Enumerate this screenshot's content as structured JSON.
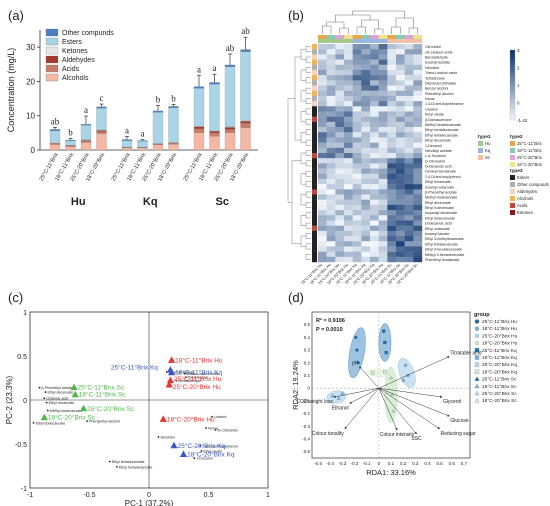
{
  "panel_labels": [
    "(a)",
    "(b)",
    "(c)",
    "(d)"
  ],
  "chart_data": [
    {
      "type": "bar",
      "panel": "(a)",
      "ylabel": "Concentration (mg/L)",
      "ylim": [
        0,
        35
      ],
      "yticks": [
        0,
        10,
        20,
        30
      ],
      "categories": [
        "25°C-11°Brix",
        "18°C-11°Brix",
        "25°C-20°Brix",
        "18°C-20°Brix",
        "25°C-11°Brix",
        "18°C-11°Brix",
        "25°C-20°Brix",
        "18°C-20°Brix",
        "25°C-11°Brix",
        "18°C-11°Brix",
        "25°C-20°Brix",
        "18°C-20°Brix"
      ],
      "groups": [
        {
          "label": "Hu",
          "from": 0,
          "to": 3
        },
        {
          "label": "Kq",
          "from": 4,
          "to": 7
        },
        {
          "label": "Sc",
          "from": 8,
          "to": 11
        }
      ],
      "legend_position": "top-left",
      "series": [
        {
          "name": "Alcohols",
          "color": "#f4b7a1",
          "values": [
            1.6,
            1.0,
            2.2,
            4.8,
            0.6,
            0.6,
            1.5,
            1.7,
            5.0,
            4.0,
            5.0,
            6.5
          ]
        },
        {
          "name": "Acids",
          "color": "#c97b6b",
          "values": [
            0.3,
            0.2,
            0.4,
            0.6,
            0.1,
            0.1,
            0.2,
            0.3,
            1.2,
            1.0,
            1.0,
            1.3
          ]
        },
        {
          "name": "Aldehydes",
          "color": "#9e3a2e",
          "values": [
            0.1,
            0.1,
            0.2,
            0.3,
            0.05,
            0.05,
            0.1,
            0.1,
            0.6,
            0.5,
            0.6,
            0.6
          ]
        },
        {
          "name": "Ketones",
          "color": "#e8e8e8",
          "values": [
            0.2,
            0.1,
            0.2,
            0.2,
            0.1,
            0.1,
            0.2,
            0.2,
            0.2,
            0.2,
            0.2,
            0.2
          ]
        },
        {
          "name": "Esters",
          "color": "#a9d3e6",
          "values": [
            3.4,
            1.3,
            4.2,
            6.3,
            1.9,
            1.7,
            9.0,
            10.0,
            11.0,
            13.5,
            17.5,
            20.1
          ]
        },
        {
          "name": "Other compunds",
          "color": "#4a7fbd",
          "values": [
            0.4,
            0.2,
            0.3,
            0.4,
            0.3,
            0.2,
            0.4,
            0.4,
            0.5,
            0.5,
            0.5,
            0.6
          ]
        }
      ],
      "errors": [
        0.6,
        0.5,
        2.4,
        0.8,
        0.9,
        0.3,
        1.6,
        0.6,
        3.3,
        2.4,
        3.2,
        3.6
      ],
      "letters": [
        "ab",
        "b",
        "a",
        "c",
        "a",
        "a",
        "b",
        "b",
        "a",
        "a",
        "ab",
        "ab"
      ]
    },
    {
      "type": "heatmap",
      "panel": "(b)",
      "rows": [
        "Citronellol",
        "cis-Linalool oxide",
        "Benzaldehyde",
        "Isoamyl acetate",
        "Nerolidol",
        "Trans-Linalool oxide",
        "Tetradecane",
        "Diisobutyl phthalate",
        "Benzyl alcohol",
        "Phenethyl alcohol",
        "Nonal",
        "1,3-Di-tert-butylbenzene",
        "Linalool",
        "Ethyl oleate",
        "β-Damascenone",
        "Methyl hexadecanoate",
        "Ethyl hexadecanoate",
        "Ethyl tetradecanoate",
        "Ethyl decanoate",
        "1-Decanol",
        "Nerolidyl acetate",
        "L-α-Terpineol",
        "D-Citronellol",
        "Dodecanoic acid",
        "Geranyl isovalerate",
        "2,4-Di-tert-butylphenol",
        "Ethyl hexanoate",
        "Isoamyl octanoate",
        "β-Phenethyl acetate",
        "Methyl dodecanoate",
        "Ethyl decenoate",
        "Ethyl 9-decenoate",
        "Isopentyl decanoate",
        "Ethyl dodecanoate",
        "Dodecanoic acid",
        "Ethyl octanoate",
        "Isoamyl laurate",
        "Ethyl 3-methylbutanoate",
        "Ethyl tetradecanoate",
        "Ethyl 9-hexadecenoate",
        "Methyl 9-hexadecenoate",
        "Phenethyl isovalerate"
      ],
      "columns": [
        "25°C-11°Brix Hu",
        "18°C-11°Brix Hu",
        "25°C-20°Brix Hu",
        "18°C-20°Brix Hu",
        "25°C-11°Brix Kq",
        "18°C-11°Brix Kq",
        "25°C-20°Brix Kq",
        "18°C-20°Brix Kq",
        "25°C-11°Brix Sc",
        "18°C-11°Brix Sc",
        "25°C-20°Brix Sc",
        "18°C-20°Brix Sc"
      ],
      "color_scale": {
        "min": -1.42,
        "max": 3,
        "ticks": [
          "3",
          "2",
          "1",
          "0",
          "-1.42"
        ],
        "low_color": "#f2f7fc",
        "high_color": "#08306b"
      },
      "legend_type1": {
        "title": "type1",
        "items": [
          {
            "label": "Hu",
            "color": "#a3c98a"
          },
          {
            "label": "Kq",
            "color": "#9ab6e2"
          },
          {
            "label": "Sc",
            "color": "#f2c0a6"
          }
        ]
      },
      "legend_type2": {
        "title": "type2",
        "items": [
          {
            "label": "25°C-11°Brix",
            "color": "#e8a54a"
          },
          {
            "label": "18°C-11°Brix",
            "color": "#86c9b5"
          },
          {
            "label": "25°C-20°Brix",
            "color": "#d9a4d6"
          },
          {
            "label": "18°C-20°Brix",
            "color": "#ece48a"
          }
        ]
      },
      "legend_type3": {
        "title": "type3",
        "items": [
          {
            "label": "Esters",
            "color": "#222222"
          },
          {
            "label": "Other compunds",
            "color": "#b0b0b0"
          },
          {
            "label": "Aldehydes",
            "color": "#f6d0c0"
          },
          {
            "label": "Alcohols",
            "color": "#f2b35a"
          },
          {
            "label": "Acids",
            "color": "#bb4a3c"
          },
          {
            "label": "Ketones",
            "color": "#8a1c1c"
          }
        ]
      }
    },
    {
      "type": "scatter",
      "panel": "(c)",
      "xlabel": "PC-1 (37.2%)",
      "ylabel": "PC-2 (23.3%)",
      "xlim": [
        -1,
        1
      ],
      "ylim": [
        -1,
        1
      ],
      "xticks": [
        "-1",
        "-0.5",
        "0",
        "0.5",
        "1"
      ],
      "yticks": [
        "1",
        "0.5",
        "0",
        "-0.5",
        "-1"
      ],
      "samples": [
        {
          "label": "25°C-11°Brix Kq",
          "color": "#3a57c9",
          "x": 0.18,
          "y": 0.34,
          "dx": -0.5,
          "dy": 0.03
        },
        {
          "label": "18°C-11°Brix Kq",
          "color": "#3a57c9",
          "x": 0.19,
          "y": 0.31,
          "dx": 0.03,
          "dy": 0.0
        },
        {
          "label": "18°C-11°Brix Hu",
          "color": "#e8332f",
          "x": 0.19,
          "y": 0.45,
          "dx": 0.03,
          "dy": 0.0
        },
        {
          "label": "25°C-11°Brix Hu",
          "color": "#e8332f",
          "x": 0.18,
          "y": 0.22,
          "dx": 0.03,
          "dy": 0.02
        },
        {
          "label": "25°C-20°Brix Hu",
          "color": "#e8332f",
          "x": 0.17,
          "y": 0.17,
          "dx": 0.03,
          "dy": -0.02
        },
        {
          "label": "18°C-20°Brix Hu",
          "color": "#e8332f",
          "x": 0.12,
          "y": -0.22,
          "dx": 0.03,
          "dy": 0.0
        },
        {
          "label": "25°C-20°Brix Kq",
          "color": "#3a57c9",
          "x": 0.21,
          "y": -0.52,
          "dx": 0.03,
          "dy": 0.0
        },
        {
          "label": "18°C-20°Brix Kq",
          "color": "#3a57c9",
          "x": 0.29,
          "y": -0.62,
          "dx": 0.03,
          "dy": 0.0
        },
        {
          "label": "25°C-11°Brix Sc",
          "color": "#4cb848",
          "x": -0.63,
          "y": 0.14,
          "dx": 0.03,
          "dy": 0.0
        },
        {
          "label": "18°C-11°Brix Sc",
          "color": "#4cb848",
          "x": -0.62,
          "y": 0.06,
          "dx": 0.03,
          "dy": 0.0
        },
        {
          "label": "25°C-20°Brix Sc",
          "color": "#4cb848",
          "x": -0.55,
          "y": -0.1,
          "dx": 0.03,
          "dy": 0.0
        },
        {
          "label": "18°C-20°Brix Sc",
          "color": "#4cb848",
          "x": -0.88,
          "y": -0.2,
          "dx": 0.03,
          "dy": 0.0
        }
      ],
      "loadings": [
        {
          "label": "Isoamyl acetate",
          "x": 0.15,
          "y": 0.32
        },
        {
          "label": "Benzaldehyde",
          "x": 0.23,
          "y": 0.22
        },
        {
          "label": "Trans-Linalool oxide",
          "x": 0.3,
          "y": 0.3
        },
        {
          "label": "Tetradecane",
          "x": 0.31,
          "y": 0.26
        },
        {
          "label": "Linalool",
          "x": 0.53,
          "y": -0.19
        },
        {
          "label": "D-Citronellol",
          "x": 0.56,
          "y": -0.34
        },
        {
          "label": "Nonal",
          "x": 0.48,
          "y": -0.32
        },
        {
          "label": "Nerolidol",
          "x": 0.08,
          "y": -0.42
        },
        {
          "label": "2,4-Di-tert-butylphenol",
          "x": 0.43,
          "y": -0.52
        },
        {
          "label": "Ethyl oleate",
          "x": 0.44,
          "y": -0.58
        },
        {
          "label": "1-Decanol",
          "x": 0.38,
          "y": -0.66
        },
        {
          "label": "β-Phenethyl acetate",
          "x": -0.92,
          "y": 0.14
        },
        {
          "label": "Ethyl decenoate",
          "x": -0.87,
          "y": 0.09
        },
        {
          "label": "Octanoic acid",
          "x": -0.88,
          "y": 0.02
        },
        {
          "label": "Ethyl hexanoate",
          "x": -0.86,
          "y": -0.03
        },
        {
          "label": "Methyl dodecanoate",
          "x": -0.85,
          "y": -0.12
        },
        {
          "label": "Ethyl dodecanoate",
          "x": -0.97,
          "y": -0.26
        },
        {
          "label": "Phenylethyl alcohol",
          "x": -0.52,
          "y": -0.24
        },
        {
          "label": "Ethyl tetradecanoate",
          "x": -0.33,
          "y": -0.7
        },
        {
          "label": "Ethyl hexadecanoate",
          "x": -0.27,
          "y": -0.76
        }
      ]
    },
    {
      "type": "scatter",
      "panel": "(d)",
      "xlabel": "RDA1: 33.16%",
      "ylabel": "RDA2: 19.24%",
      "stats": [
        "R² = 0.9106",
        "P = 0.0010"
      ],
      "xlim": [
        -0.55,
        0.75
      ],
      "ylim": [
        -0.55,
        0.6
      ],
      "xticks": [
        "-0.5",
        "-0.4",
        "-0.3",
        "-0.2",
        "-0.1",
        "0",
        "0.1",
        "0.2",
        "0.3",
        "0.4",
        "0.5",
        "0.6",
        "0.7"
      ],
      "yticks": [
        "0.5",
        "0.4",
        "0.3",
        "0.2",
        "0.1",
        "0",
        "-0.1",
        "-0.2",
        "-0.3",
        "-0.4",
        "-0.5"
      ],
      "legend_title": "group",
      "legend": [
        {
          "label": "25°C-11°Brix Hu",
          "color": "#1f6fb0",
          "shape": "circle"
        },
        {
          "label": "18°C-11°Brix Hu",
          "color": "#79b3dc",
          "shape": "circle"
        },
        {
          "label": "25°C-20°Brix Hu",
          "color": "#b7d9ec",
          "shape": "circle"
        },
        {
          "label": "18°C-20°Brix Hu",
          "color": "#d8ecd0",
          "shape": "circle"
        },
        {
          "label": "25°C-11°Brix Kq",
          "color": "#1f6fb0",
          "shape": "square"
        },
        {
          "label": "18°C-11°Brix Kq",
          "color": "#79b3dc",
          "shape": "square"
        },
        {
          "label": "25°C-20°Brix Kq",
          "color": "#b7d9ec",
          "shape": "square"
        },
        {
          "label": "18°C-20°Brix Kq",
          "color": "#d8ecd0",
          "shape": "square"
        },
        {
          "label": "25°C-11°Brix Sc",
          "color": "#1f6fb0",
          "shape": "triangle"
        },
        {
          "label": "18°C-11°Brix Sc",
          "color": "#79b3dc",
          "shape": "triangle"
        },
        {
          "label": "25°C-20°Brix Sc",
          "color": "#b7d9ec",
          "shape": "triangle"
        },
        {
          "label": "18°C-20°Brix Sc",
          "color": "#d8ecd0",
          "shape": "triangle"
        }
      ],
      "ellipses": [
        {
          "cx": -0.18,
          "cy": 0.28,
          "rx": 0.06,
          "ry": 0.2,
          "rot": 10,
          "color": "#4f92c8"
        },
        {
          "cx": 0.05,
          "cy": 0.36,
          "rx": 0.05,
          "ry": 0.15,
          "rot": 0,
          "color": "#4f92c8"
        },
        {
          "cx": 0.23,
          "cy": 0.12,
          "rx": 0.06,
          "ry": 0.12,
          "rot": -20,
          "color": "#9cc8e6"
        },
        {
          "cx": 0.1,
          "cy": -0.05,
          "rx": 0.05,
          "ry": 0.22,
          "rot": 0,
          "color": "#b9e1b4"
        },
        {
          "cx": -0.35,
          "cy": -0.07,
          "rx": 0.08,
          "ry": 0.05,
          "rot": -10,
          "color": "#9cc8e6"
        },
        {
          "cx": 0.0,
          "cy": 0.12,
          "rx": 0.1,
          "ry": 0.03,
          "rot": 5,
          "color": "#d8ecd0"
        }
      ],
      "points": [
        {
          "x": -0.19,
          "y": 0.4,
          "color": "#1f6fb0",
          "shape": "circle"
        },
        {
          "x": -0.18,
          "y": 0.3,
          "color": "#1f6fb0",
          "shape": "circle"
        },
        {
          "x": -0.17,
          "y": 0.2,
          "color": "#1f6fb0",
          "shape": "circle"
        },
        {
          "x": 0.04,
          "y": 0.45,
          "color": "#1f6fb0",
          "shape": "square"
        },
        {
          "x": 0.05,
          "y": 0.36,
          "color": "#1f6fb0",
          "shape": "square"
        },
        {
          "x": 0.06,
          "y": 0.28,
          "color": "#1f6fb0",
          "shape": "square"
        },
        {
          "x": 0.22,
          "y": 0.18,
          "color": "#79b3dc",
          "shape": "circle"
        },
        {
          "x": 0.24,
          "y": 0.1,
          "color": "#79b3dc",
          "shape": "circle"
        },
        {
          "x": 0.2,
          "y": 0.06,
          "color": "#79b3dc",
          "shape": "circle"
        },
        {
          "x": 0.1,
          "y": 0.08,
          "color": "#b7d9ec",
          "shape": "triangle"
        },
        {
          "x": 0.11,
          "y": -0.05,
          "color": "#b7d9ec",
          "shape": "triangle"
        },
        {
          "x": 0.12,
          "y": -0.18,
          "color": "#b7d9ec",
          "shape": "triangle"
        },
        {
          "x": -0.38,
          "y": -0.06,
          "color": "#79b3dc",
          "shape": "triangle"
        },
        {
          "x": -0.33,
          "y": -0.08,
          "color": "#79b3dc",
          "shape": "triangle"
        },
        {
          "x": -0.3,
          "y": -0.04,
          "color": "#79b3dc",
          "shape": "triangle"
        },
        {
          "x": -0.05,
          "y": 0.12,
          "color": "#d8ecd0",
          "shape": "square"
        },
        {
          "x": 0.05,
          "y": 0.13,
          "color": "#d8ecd0",
          "shape": "square"
        }
      ],
      "arrows": [
        {
          "label": "Titratable acid",
          "x": 0.58,
          "y": 0.25
        },
        {
          "label": "pH",
          "x": -0.16,
          "y": 0.17
        },
        {
          "label": "CO2/weight loss",
          "x": -0.37,
          "y": -0.07
        },
        {
          "label": "Ethanol",
          "x": -0.24,
          "y": -0.12
        },
        {
          "label": "Colour tonality",
          "x": -0.28,
          "y": -0.32
        },
        {
          "label": "Colour intensity",
          "x": 0.15,
          "y": -0.33
        },
        {
          "label": "SSC",
          "x": 0.31,
          "y": -0.36
        },
        {
          "label": "Reducing sugar",
          "x": 0.5,
          "y": -0.32
        },
        {
          "label": "Glucose",
          "x": 0.58,
          "y": -0.22
        },
        {
          "label": "Glycerol",
          "x": 0.52,
          "y": -0.07
        }
      ]
    }
  ]
}
